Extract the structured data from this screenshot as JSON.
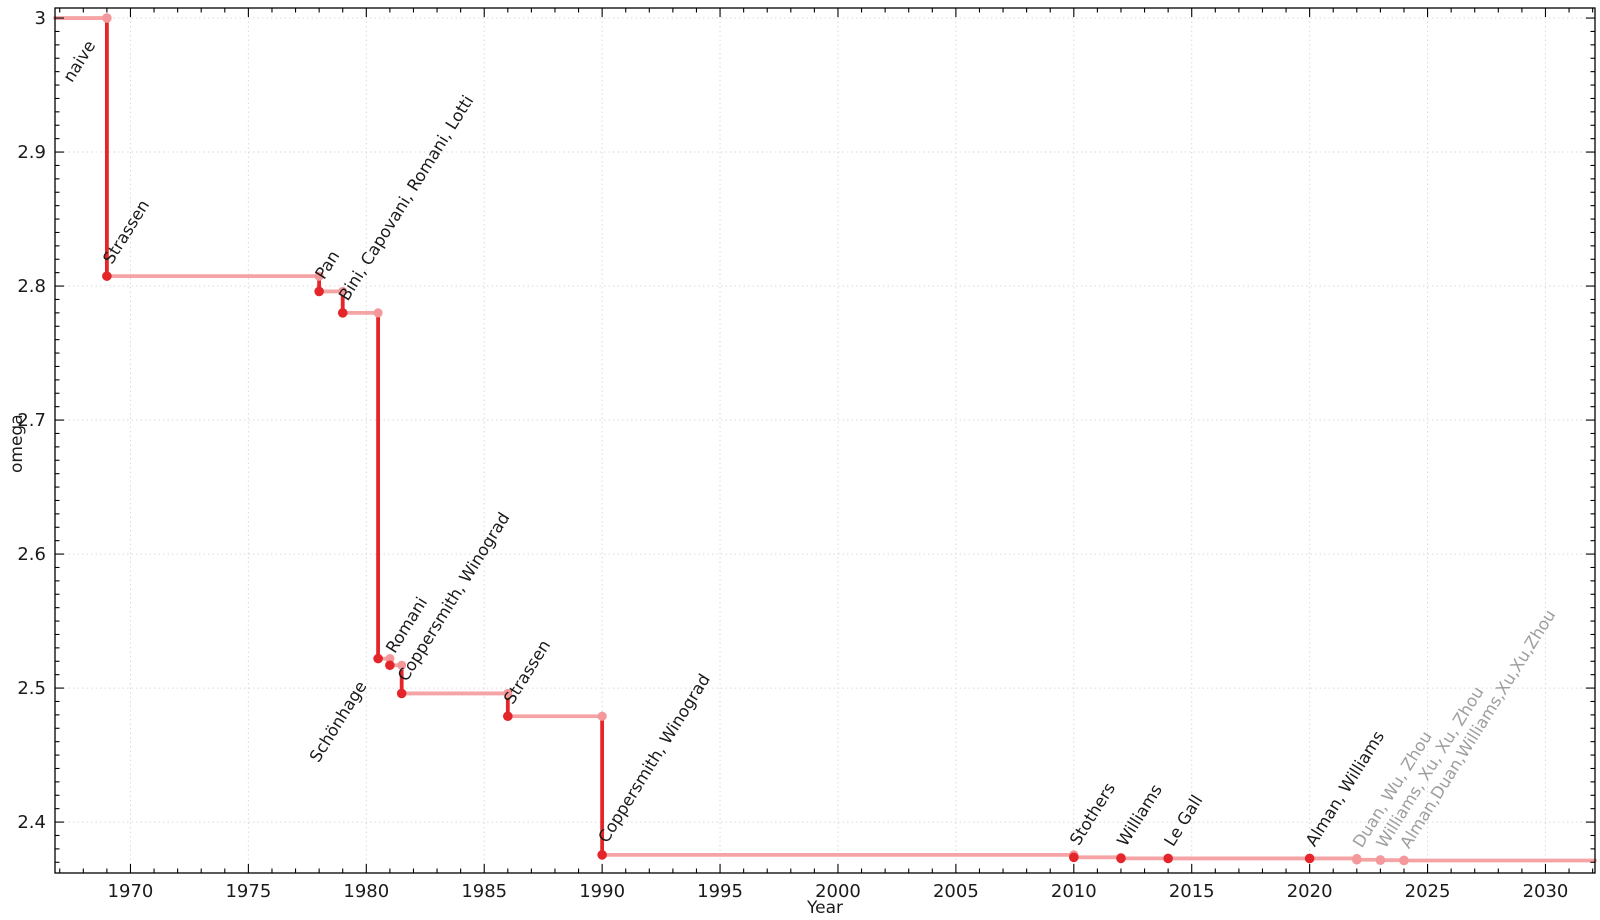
{
  "chart_data": {
    "type": "line",
    "variant": "step-post",
    "title": "",
    "xlabel": "Year",
    "ylabel": "omega",
    "xlim": [
      1966.8,
      2032.1
    ],
    "ylim": [
      2.362,
      3.0075
    ],
    "grid": true,
    "legend": false,
    "x_major_ticks": [
      1970,
      1975,
      1980,
      1985,
      1990,
      1995,
      2000,
      2005,
      2010,
      2015,
      2020,
      2025,
      2030
    ],
    "x_minor_step": 1,
    "y_major_ticks": [
      2.4,
      2.5,
      2.6,
      2.7,
      2.8,
      2.9,
      3
    ],
    "y_tick_labels": [
      "2.4",
      "2.5",
      "2.6",
      "2.7",
      "2.8",
      "2.9",
      "3"
    ],
    "y_minor_step": 0.01,
    "label_rotation_deg": -58,
    "colors": {
      "step_horizontal": "#f5a3a4",
      "step_vertical": "#e42529",
      "point_major": "#e42529",
      "point_minor": "#f5989b",
      "label_black": "#1b1b1b",
      "label_gray": "#9e9e9e",
      "grid": "#dadada",
      "frame": "#000000",
      "tick_text": "#1b1b1b"
    },
    "points": [
      {
        "year": 1969,
        "omega": 3,
        "label": "naive",
        "point": "minor",
        "label_color": "black",
        "label_placement": "below-left"
      },
      {
        "year": 1969,
        "omega": 2.8074,
        "label": "Strassen",
        "point": "major",
        "label_color": "black",
        "label_placement": "above-right"
      },
      {
        "year": 1978,
        "omega": 2.796,
        "label": "Pan",
        "point": "major",
        "label_color": "black",
        "label_placement": "above-right"
      },
      {
        "year": 1979,
        "omega": 2.78,
        "label": "Bini, Capovani, Romani, Lotti",
        "point": "major",
        "label_color": "black",
        "label_placement": "above-right"
      },
      {
        "year": 1980.5,
        "omega": 2.522,
        "label": "Schönhage",
        "point": "major",
        "label_color": "black",
        "label_placement": "below-left"
      },
      {
        "year": 1981,
        "omega": 2.517,
        "label": "Romani",
        "point": "major",
        "label_color": "black",
        "label_placement": "above-right"
      },
      {
        "year": 1981.5,
        "omega": 2.496,
        "label": "Coppersmith, Winograd",
        "point": "major",
        "label_color": "black",
        "label_placement": "above-right"
      },
      {
        "year": 1986,
        "omega": 2.479,
        "label": "Strassen",
        "point": "major",
        "label_color": "black",
        "label_placement": "above-right"
      },
      {
        "year": 1990,
        "omega": 2.3755,
        "label": "Coppersmith, Winograd",
        "point": "major",
        "label_color": "black",
        "label_placement": "above-right"
      },
      {
        "year": 2010,
        "omega": 2.3737,
        "label": "Stothers",
        "point": "major",
        "label_color": "black",
        "label_placement": "above-right"
      },
      {
        "year": 2012,
        "omega": 2.3729,
        "label": "Williams",
        "point": "major",
        "label_color": "black",
        "label_placement": "above-right"
      },
      {
        "year": 2014,
        "omega": 2.3728639,
        "label": "Le Gall",
        "point": "major",
        "label_color": "black",
        "label_placement": "above-right"
      },
      {
        "year": 2020,
        "omega": 2.3728596,
        "label": "Alman, Williams",
        "point": "major",
        "label_color": "black",
        "label_placement": "above-right"
      },
      {
        "year": 2022,
        "omega": 2.371866,
        "label": "Duan, Wu, Zhou",
        "point": "minor",
        "label_color": "gray",
        "label_placement": "above-right"
      },
      {
        "year": 2023,
        "omega": 2.371552,
        "label": "Williams, Xu, Xu, Zhou",
        "point": "minor",
        "label_color": "gray",
        "label_placement": "above-right"
      },
      {
        "year": 2024,
        "omega": 2.371339,
        "label": "Alman,Duan,Williams,Xu,Xu,Zhou",
        "point": "minor",
        "label_color": "gray",
        "label_placement": "above-right"
      }
    ]
  }
}
